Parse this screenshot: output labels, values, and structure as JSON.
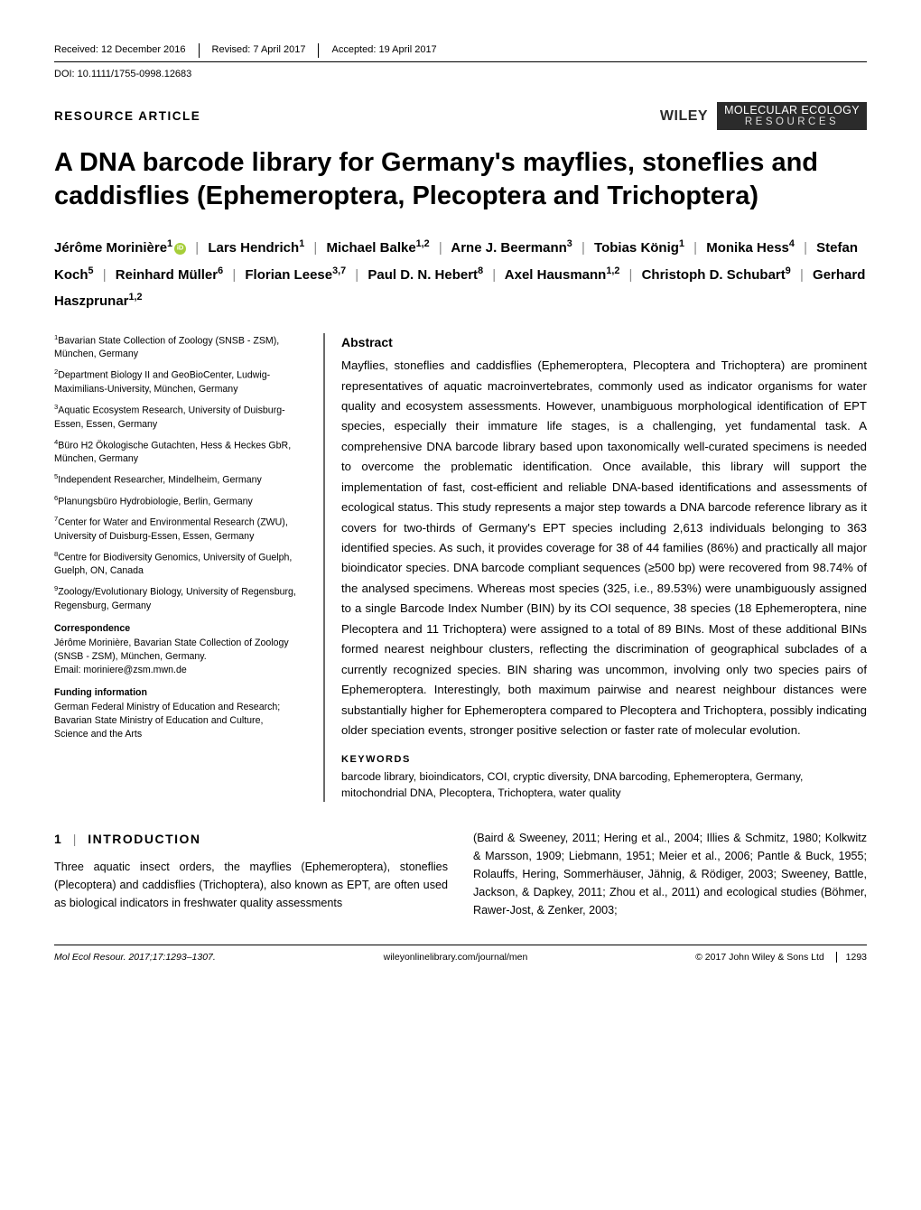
{
  "meta": {
    "received": "Received: 12 December 2016",
    "revised": "Revised: 7 April 2017",
    "accepted": "Accepted: 19 April 2017",
    "doi": "DOI: 10.1111/1755-0998.12683"
  },
  "header": {
    "article_type": "RESOURCE ARTICLE",
    "publisher": "WILEY",
    "journal_l1": "MOLECULAR ECOLOGY",
    "journal_l2": "RESOURCES"
  },
  "title": "A DNA barcode library for Germany's mayflies, stoneflies and caddisflies (Ephemeroptera, Plecoptera and Trichoptera)",
  "authors": [
    {
      "name": "Jérôme Morinière",
      "sup": "1",
      "orcid": true
    },
    {
      "name": "Lars Hendrich",
      "sup": "1"
    },
    {
      "name": "Michael Balke",
      "sup": "1,2"
    },
    {
      "name": "Arne J. Beermann",
      "sup": "3"
    },
    {
      "name": "Tobias König",
      "sup": "1"
    },
    {
      "name": "Monika Hess",
      "sup": "4"
    },
    {
      "name": "Stefan Koch",
      "sup": "5"
    },
    {
      "name": "Reinhard Müller",
      "sup": "6"
    },
    {
      "name": "Florian Leese",
      "sup": "3,7"
    },
    {
      "name": "Paul D. N. Hebert",
      "sup": "8"
    },
    {
      "name": "Axel Hausmann",
      "sup": "1,2"
    },
    {
      "name": "Christoph D. Schubart",
      "sup": "9"
    },
    {
      "name": "Gerhard Haszprunar",
      "sup": "1,2"
    }
  ],
  "affiliations": [
    {
      "sup": "1",
      "text": "Bavarian State Collection of Zoology (SNSB - ZSM), München, Germany"
    },
    {
      "sup": "2",
      "text": "Department Biology II and GeoBioCenter, Ludwig-Maximilians-University, München, Germany"
    },
    {
      "sup": "3",
      "text": "Aquatic Ecosystem Research, University of Duisburg-Essen, Essen, Germany"
    },
    {
      "sup": "4",
      "text": "Büro H2 Ökologische Gutachten, Hess & Heckes GbR, München, Germany"
    },
    {
      "sup": "5",
      "text": "Independent Researcher, Mindelheim, Germany"
    },
    {
      "sup": "6",
      "text": "Planungsbüro Hydrobiologie, Berlin, Germany"
    },
    {
      "sup": "7",
      "text": "Center for Water and Environmental Research (ZWU), University of Duisburg-Essen, Essen, Germany"
    },
    {
      "sup": "8",
      "text": "Centre for Biodiversity Genomics, University of Guelph, Guelph, ON, Canada"
    },
    {
      "sup": "9",
      "text": "Zoology/Evolutionary Biology, University of Regensburg, Regensburg, Germany"
    }
  ],
  "correspondence": {
    "head": "Correspondence",
    "body": "Jérôme Morinière, Bavarian State Collection of Zoology (SNSB - ZSM), München, Germany.",
    "email": "Email: moriniere@zsm.mwn.de"
  },
  "funding": {
    "head": "Funding information",
    "body": "German Federal Ministry of Education and Research; Bavarian State Ministry of Education and Culture, Science and the Arts"
  },
  "abstract": {
    "head": "Abstract",
    "body": "Mayflies, stoneflies and caddisflies (Ephemeroptera, Plecoptera and Trichoptera) are prominent representatives of aquatic macroinvertebrates, commonly used as indicator organisms for water quality and ecosystem assessments. However, unambiguous morphological identification of EPT species, especially their immature life stages, is a challenging, yet fundamental task. A comprehensive DNA barcode library based upon taxonomically well-curated specimens is needed to overcome the problematic identification. Once available, this library will support the implementation of fast, cost-efficient and reliable DNA-based identifications and assessments of ecological status. This study represents a major step towards a DNA barcode reference library as it covers for two-thirds of Germany's EPT species including 2,613 individuals belonging to 363 identified species. As such, it provides coverage for 38 of 44 families (86%) and practically all major bioindicator species. DNA barcode compliant sequences (≥500 bp) were recovered from 98.74% of the analysed specimens. Whereas most species (325, i.e., 89.53%) were unambiguously assigned to a single Barcode Index Number (BIN) by its COI sequence, 38 species (18 Ephemeroptera, nine Plecoptera and 11 Trichoptera) were assigned to a total of 89 BINs. Most of these additional BINs formed nearest neighbour clusters, reflecting the discrimination of geographical subclades of a currently recognized species. BIN sharing was uncommon, involving only two species pairs of Ephemeroptera. Interestingly, both maximum pairwise and nearest neighbour distances were substantially higher for Ephemeroptera compared to Plecoptera and Trichoptera, possibly indicating older speciation events, stronger positive selection or faster rate of molecular evolution.",
    "kw_head": "KEYWORDS",
    "keywords": "barcode library, bioindicators, COI, cryptic diversity, DNA barcoding, Ephemeroptera, Germany, mitochondrial DNA, Plecoptera, Trichoptera, water quality"
  },
  "intro": {
    "num": "1",
    "head": "INTRODUCTION",
    "col1": "Three aquatic insect orders, the mayflies (Ephemeroptera), stoneflies (Plecoptera) and caddisflies (Trichoptera), also known as EPT, are often used as biological indicators in freshwater quality assessments",
    "col2": "(Baird & Sweeney, 2011; Hering et al., 2004; Illies & Schmitz, 1980; Kolkwitz & Marsson, 1909; Liebmann, 1951; Meier et al., 2006; Pantle & Buck, 1955; Rolauffs, Hering, Sommerhäuser, Jähnig, & Rödiger, 2003; Sweeney, Battle, Jackson, & Dapkey, 2011; Zhou et al., 2011) and ecological studies (Böhmer, Rawer-Jost, & Zenker, 2003;"
  },
  "footer": {
    "citation": "Mol Ecol Resour. 2017;17:1293–1307.",
    "url": "wileyonlinelibrary.com/journal/men",
    "copyright": "© 2017 John Wiley & Sons Ltd",
    "page": "1293"
  },
  "colors": {
    "journal_box_bg": "#2b2b2b",
    "border_rule": "#6a6a6a",
    "orcid_green": "#a6ce39"
  }
}
